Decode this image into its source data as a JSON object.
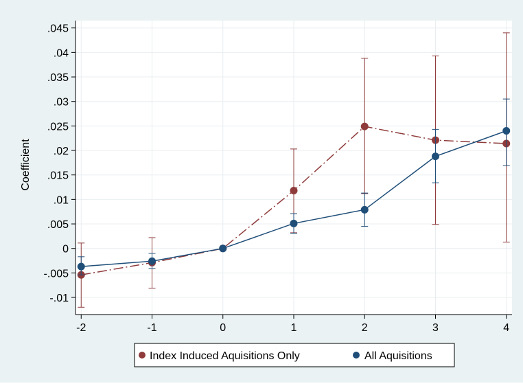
{
  "chart_data": {
    "type": "line",
    "title": "",
    "xlabel": "",
    "ylabel": "Coefficient",
    "x": [
      -2,
      -1,
      0,
      1,
      2,
      3,
      4
    ],
    "xlim": [
      -2.08,
      4.08
    ],
    "ylim": [
      -0.0135,
      0.0465
    ],
    "x_ticks": [
      {
        "value": -2,
        "label": "-2"
      },
      {
        "value": -1,
        "label": "-1"
      },
      {
        "value": 0,
        "label": "0"
      },
      {
        "value": 1,
        "label": "1"
      },
      {
        "value": 2,
        "label": "2"
      },
      {
        "value": 3,
        "label": "3"
      },
      {
        "value": 4,
        "label": "4"
      }
    ],
    "y_ticks": [
      {
        "value": 0.045,
        "label": ".045"
      },
      {
        "value": 0.04,
        "label": ".04"
      },
      {
        "value": 0.035,
        "label": ".035"
      },
      {
        "value": 0.03,
        "label": ".03"
      },
      {
        "value": 0.025,
        "label": ".025"
      },
      {
        "value": 0.02,
        "label": ".02"
      },
      {
        "value": 0.015,
        "label": ".015"
      },
      {
        "value": 0.01,
        "label": ".01"
      },
      {
        "value": 0.005,
        "label": ".005"
      },
      {
        "value": 0,
        "label": "0"
      },
      {
        "value": -0.005,
        "label": "-.005"
      },
      {
        "value": -0.01,
        "label": "-.01"
      }
    ],
    "grid": true,
    "legend_position": "bottom",
    "colors": {
      "outer_background": "#eaf2f3",
      "plot_background": "#ffffff",
      "grid": "#e8eef0",
      "axis": "#000000"
    },
    "series": [
      {
        "name": "Index Induced Aquisitions Only",
        "color": "#8f3b3b",
        "line_style": "dash-dot",
        "values": [
          -0.0054,
          -0.0029,
          0.0,
          0.0118,
          0.0249,
          0.0221,
          0.0214
        ],
        "ci_low": [
          -0.012,
          -0.0081,
          0.0,
          0.0032,
          0.0112,
          0.0049,
          0.0013
        ],
        "ci_high": [
          0.0011,
          0.0022,
          0.0,
          0.0203,
          0.0388,
          0.0393,
          0.044
        ]
      },
      {
        "name": "All Aquisitions",
        "color": "#1f4e79",
        "line_style": "solid",
        "values": [
          -0.0037,
          -0.0026,
          0.0,
          0.0051,
          0.0079,
          0.0188,
          0.024
        ],
        "ci_low": [
          -0.0054,
          -0.0041,
          0.0,
          0.0031,
          0.0045,
          0.0134,
          0.0169
        ],
        "ci_high": [
          -0.0017,
          -0.001,
          0.0,
          0.0071,
          0.0113,
          0.0243,
          0.0305
        ]
      }
    ]
  }
}
